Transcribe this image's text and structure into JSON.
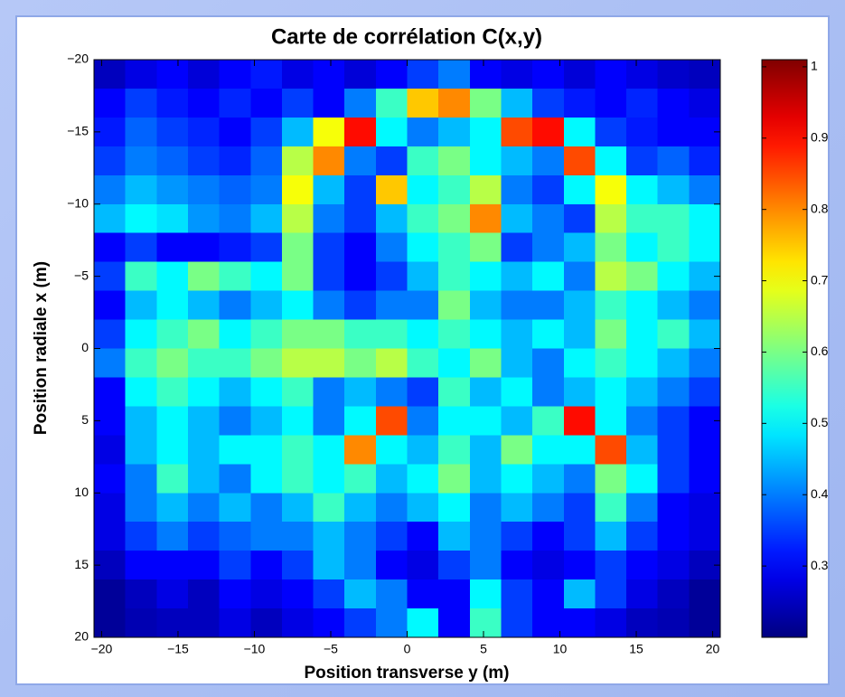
{
  "chart_data": {
    "type": "heatmap",
    "title": "Carte de corrélation C(x,y)",
    "x_label": "Position transverse  y (m)",
    "y_label": "Position radiale  x (m)",
    "xlim": [
      -20.5,
      20.5
    ],
    "ylim": [
      -20,
      20
    ],
    "y_reversed": true,
    "xticks": [
      {
        "value": -20,
        "label": "−20"
      },
      {
        "value": -15,
        "label": "−15"
      },
      {
        "value": -10,
        "label": "−10"
      },
      {
        "value": -5,
        "label": "−5"
      },
      0,
      5,
      10,
      15,
      20
    ],
    "yticks": [
      {
        "value": -20,
        "label": "−20"
      },
      {
        "value": -15,
        "label": "−15"
      },
      {
        "value": -10,
        "label": "−10"
      },
      {
        "value": -5,
        "label": "−5"
      },
      0,
      5,
      10,
      15,
      20
    ],
    "colormap": "jet",
    "clim": [
      0.2,
      1.01
    ],
    "cbticks": [
      0.3,
      0.4,
      0.5,
      0.6,
      0.7,
      0.8,
      0.9,
      1
    ],
    "z": [
      [
        0.25,
        0.28,
        0.3,
        0.27,
        0.3,
        0.32,
        0.28,
        0.3,
        0.27,
        0.3,
        0.35,
        0.4,
        0.3,
        0.28,
        0.3,
        0.27,
        0.3,
        0.28,
        0.26,
        0.25
      ],
      [
        0.3,
        0.35,
        0.32,
        0.3,
        0.33,
        0.3,
        0.35,
        0.3,
        0.4,
        0.55,
        0.75,
        0.8,
        0.6,
        0.45,
        0.35,
        0.32,
        0.3,
        0.33,
        0.3,
        0.28
      ],
      [
        0.32,
        0.38,
        0.35,
        0.33,
        0.3,
        0.35,
        0.45,
        0.7,
        0.9,
        0.5,
        0.4,
        0.45,
        0.5,
        0.85,
        0.9,
        0.5,
        0.35,
        0.32,
        0.3,
        0.3
      ],
      [
        0.35,
        0.4,
        0.38,
        0.35,
        0.33,
        0.38,
        0.65,
        0.8,
        0.4,
        0.35,
        0.55,
        0.6,
        0.5,
        0.45,
        0.4,
        0.85,
        0.5,
        0.35,
        0.38,
        0.33
      ],
      [
        0.4,
        0.45,
        0.42,
        0.4,
        0.38,
        0.4,
        0.7,
        0.45,
        0.35,
        0.75,
        0.5,
        0.55,
        0.65,
        0.4,
        0.35,
        0.5,
        0.7,
        0.5,
        0.45,
        0.4
      ],
      [
        0.45,
        0.5,
        0.48,
        0.42,
        0.4,
        0.45,
        0.65,
        0.4,
        0.35,
        0.45,
        0.55,
        0.6,
        0.8,
        0.45,
        0.4,
        0.35,
        0.65,
        0.55,
        0.55,
        0.5
      ],
      [
        0.3,
        0.35,
        0.3,
        0.3,
        0.32,
        0.35,
        0.6,
        0.35,
        0.3,
        0.4,
        0.5,
        0.55,
        0.6,
        0.35,
        0.4,
        0.45,
        0.6,
        0.5,
        0.55,
        0.5
      ],
      [
        0.35,
        0.55,
        0.5,
        0.6,
        0.55,
        0.5,
        0.6,
        0.35,
        0.3,
        0.35,
        0.45,
        0.55,
        0.5,
        0.45,
        0.5,
        0.4,
        0.65,
        0.6,
        0.5,
        0.45
      ],
      [
        0.3,
        0.45,
        0.5,
        0.45,
        0.4,
        0.45,
        0.5,
        0.4,
        0.35,
        0.4,
        0.4,
        0.6,
        0.45,
        0.4,
        0.4,
        0.45,
        0.55,
        0.5,
        0.45,
        0.4
      ],
      [
        0.35,
        0.5,
        0.55,
        0.6,
        0.5,
        0.55,
        0.6,
        0.6,
        0.55,
        0.55,
        0.5,
        0.55,
        0.5,
        0.45,
        0.5,
        0.45,
        0.6,
        0.5,
        0.55,
        0.45
      ],
      [
        0.4,
        0.55,
        0.6,
        0.55,
        0.55,
        0.6,
        0.65,
        0.65,
        0.6,
        0.65,
        0.55,
        0.5,
        0.6,
        0.45,
        0.4,
        0.5,
        0.55,
        0.5,
        0.45,
        0.4
      ],
      [
        0.3,
        0.5,
        0.55,
        0.5,
        0.45,
        0.5,
        0.55,
        0.4,
        0.45,
        0.4,
        0.35,
        0.55,
        0.45,
        0.5,
        0.4,
        0.45,
        0.5,
        0.45,
        0.4,
        0.35
      ],
      [
        0.3,
        0.45,
        0.5,
        0.45,
        0.4,
        0.45,
        0.5,
        0.4,
        0.5,
        0.85,
        0.4,
        0.5,
        0.5,
        0.45,
        0.55,
        0.9,
        0.5,
        0.4,
        0.35,
        0.3
      ],
      [
        0.28,
        0.45,
        0.5,
        0.45,
        0.5,
        0.5,
        0.55,
        0.5,
        0.8,
        0.5,
        0.45,
        0.55,
        0.45,
        0.6,
        0.5,
        0.5,
        0.85,
        0.45,
        0.35,
        0.3
      ],
      [
        0.3,
        0.4,
        0.55,
        0.45,
        0.4,
        0.5,
        0.55,
        0.5,
        0.55,
        0.45,
        0.5,
        0.6,
        0.45,
        0.5,
        0.45,
        0.4,
        0.6,
        0.5,
        0.35,
        0.3
      ],
      [
        0.28,
        0.4,
        0.45,
        0.4,
        0.45,
        0.4,
        0.45,
        0.55,
        0.45,
        0.4,
        0.45,
        0.5,
        0.4,
        0.45,
        0.4,
        0.35,
        0.55,
        0.4,
        0.3,
        0.28
      ],
      [
        0.28,
        0.35,
        0.4,
        0.35,
        0.38,
        0.4,
        0.4,
        0.45,
        0.4,
        0.35,
        0.3,
        0.45,
        0.4,
        0.35,
        0.3,
        0.35,
        0.45,
        0.35,
        0.3,
        0.28
      ],
      [
        0.25,
        0.3,
        0.3,
        0.3,
        0.35,
        0.3,
        0.35,
        0.45,
        0.4,
        0.3,
        0.28,
        0.35,
        0.4,
        0.3,
        0.28,
        0.3,
        0.35,
        0.3,
        0.28,
        0.25
      ],
      [
        0.22,
        0.25,
        0.28,
        0.25,
        0.3,
        0.28,
        0.3,
        0.35,
        0.45,
        0.4,
        0.3,
        0.3,
        0.5,
        0.35,
        0.3,
        0.45,
        0.35,
        0.28,
        0.25,
        0.22
      ],
      [
        0.22,
        0.24,
        0.25,
        0.25,
        0.28,
        0.25,
        0.28,
        0.3,
        0.35,
        0.4,
        0.5,
        0.3,
        0.55,
        0.35,
        0.3,
        0.3,
        0.28,
        0.25,
        0.24,
        0.22
      ]
    ]
  }
}
